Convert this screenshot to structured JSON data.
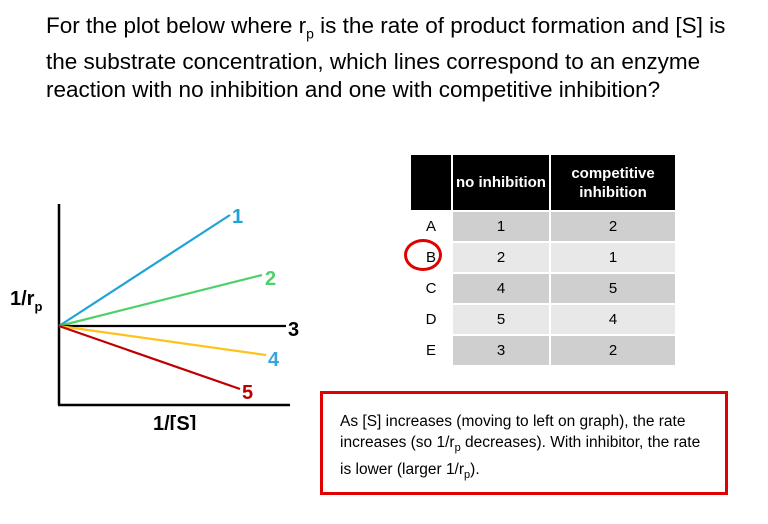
{
  "question": {
    "part1": "For the plot below where r",
    "sub1": "p",
    "part2": " is the rate of product formation and [S] is the substrate concentration, which lines correspond to an enzyme reaction with no inhibition and one with competitive inhibition?"
  },
  "plot": {
    "ylabel_main": "1/r",
    "ylabel_sub": "p",
    "xlabel": "1/[S]",
    "lines": [
      {
        "label": "1",
        "color": "#1fa3d6"
      },
      {
        "label": "2",
        "color": "#4fd06a"
      },
      {
        "label": "3",
        "color": "#000000"
      },
      {
        "label": "4",
        "color": "#ffc21a"
      },
      {
        "label": "5",
        "color": "#c00000"
      }
    ],
    "label_colors": {
      "1": "#1fa3d6",
      "2": "#4fd06a",
      "3": "#000000",
      "4": "#3aa4db",
      "5": "#c00000"
    }
  },
  "table": {
    "headers": [
      "",
      "no inhibition",
      "competitive inhibition"
    ],
    "rows": [
      {
        "option": "A",
        "no_inhibition": "1",
        "competitive": "2"
      },
      {
        "option": "B",
        "no_inhibition": "2",
        "competitive": "1"
      },
      {
        "option": "C",
        "no_inhibition": "4",
        "competitive": "5"
      },
      {
        "option": "D",
        "no_inhibition": "5",
        "competitive": "4"
      },
      {
        "option": "E",
        "no_inhibition": "3",
        "competitive": "2"
      }
    ],
    "selected_option": "B",
    "highlight_color": "#e00000"
  },
  "explanation": {
    "t1": "As [S] increases (moving to left on graph), the rate increases (so 1/r",
    "s1": "p",
    "t2": " decreases). With inhibitor, the rate is lower (larger 1/r",
    "s2": "p",
    "t3": ")."
  }
}
